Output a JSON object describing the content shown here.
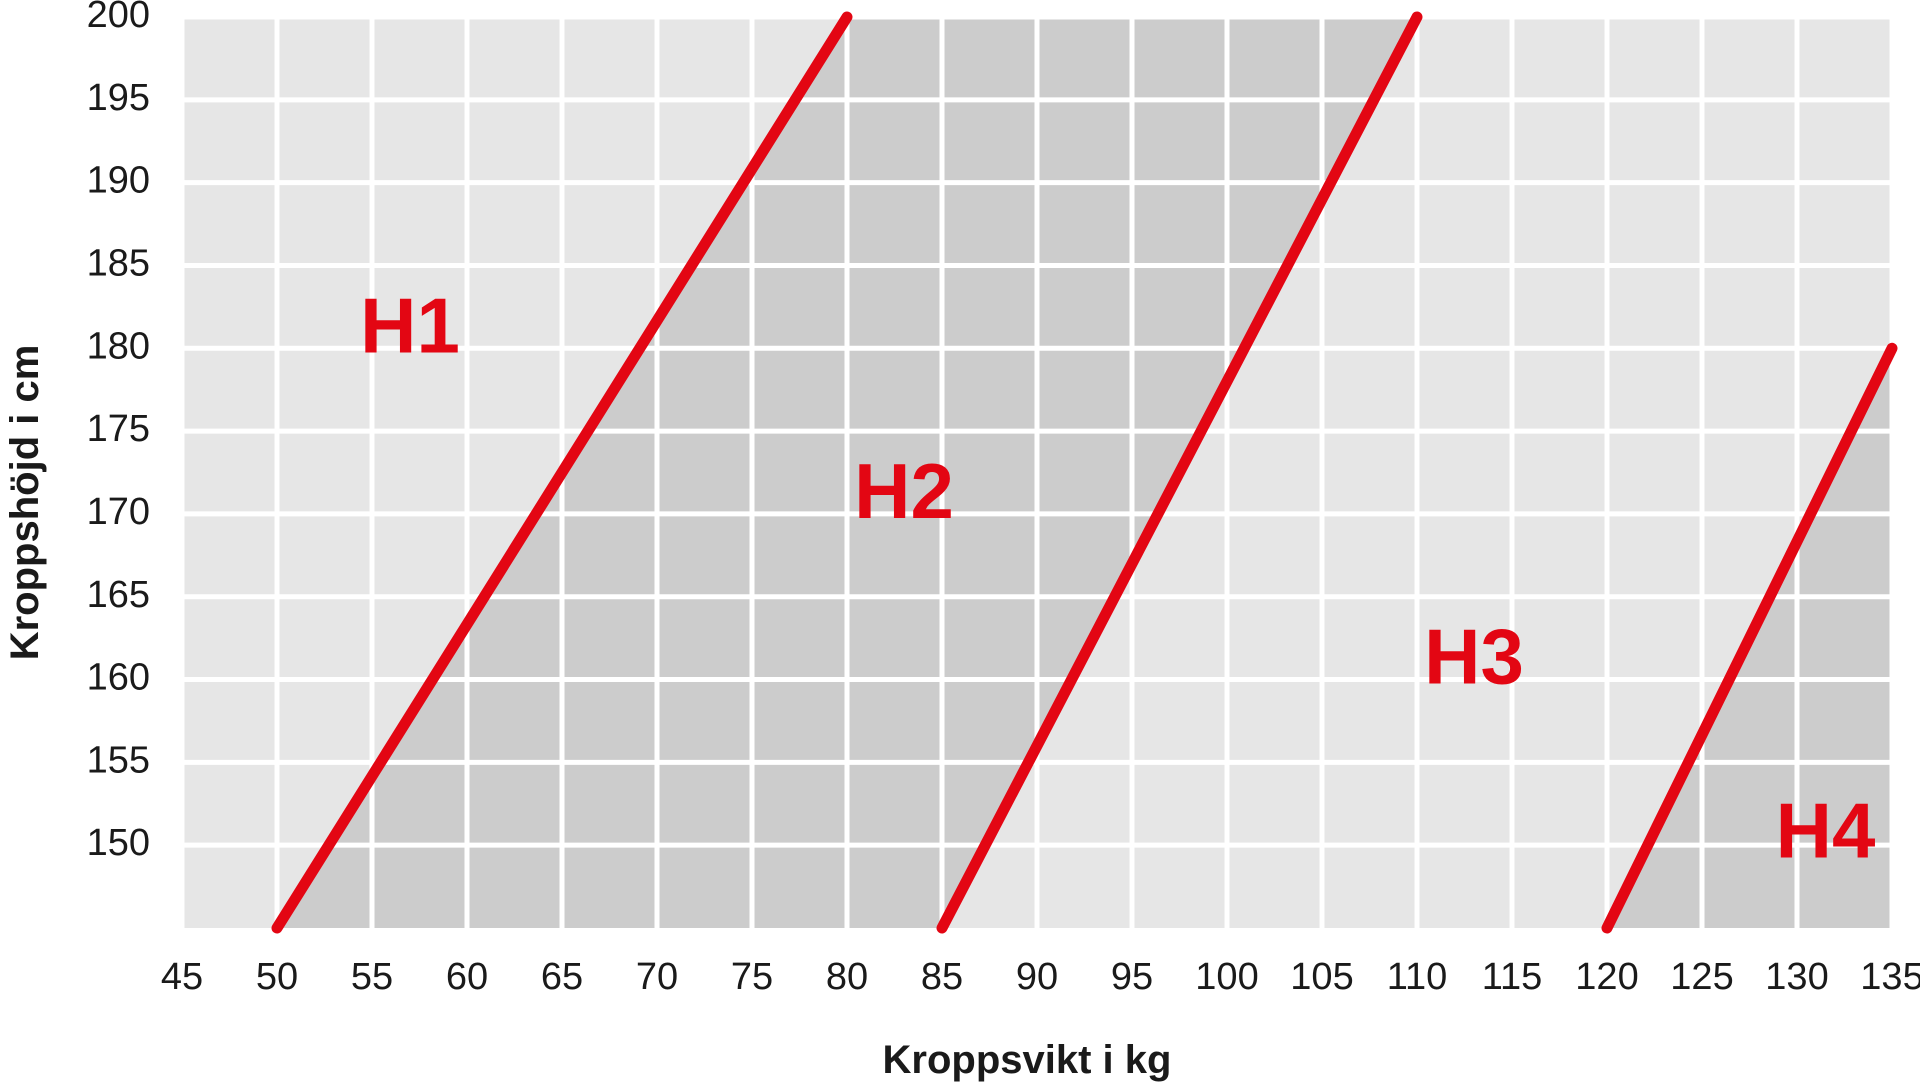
{
  "chart_data": {
    "type": "line",
    "title": "",
    "xlabel": "Kroppsvikt i kg",
    "ylabel": "Kroppshöjd i cm",
    "xlim": [
      45,
      135
    ],
    "ylim": [
      145,
      200
    ],
    "x_ticks": [
      45,
      50,
      55,
      60,
      65,
      70,
      75,
      80,
      85,
      90,
      95,
      100,
      105,
      110,
      115,
      120,
      125,
      130,
      135
    ],
    "y_ticks": [
      150,
      155,
      160,
      165,
      170,
      175,
      180,
      185,
      190,
      195,
      200
    ],
    "x_tick_labels": [
      "45",
      "50",
      "55",
      "60",
      "65",
      "70",
      "75",
      "80",
      "85",
      "90",
      "95",
      "100",
      "105",
      "110",
      "115",
      "120",
      "125",
      "130",
      "135"
    ],
    "y_tick_labels": [
      "150",
      "155",
      "160",
      "165",
      "170",
      "175",
      "180",
      "185",
      "190",
      "195",
      "200"
    ],
    "grid": true,
    "series": [
      {
        "points": [
          [
            50,
            145
          ],
          [
            80,
            200
          ]
        ]
      },
      {
        "points": [
          [
            85,
            145
          ],
          [
            110,
            200
          ]
        ]
      },
      {
        "points": [
          [
            120,
            145
          ],
          [
            135,
            180
          ]
        ]
      }
    ],
    "regions": [
      {
        "label": "H1",
        "x": 57,
        "y": 181
      },
      {
        "label": "H2",
        "x": 83,
        "y": 171
      },
      {
        "label": "H3",
        "x": 113,
        "y": 161
      },
      {
        "label": "H4",
        "x": 131.5,
        "y": 150.5
      }
    ],
    "colors": {
      "line": "#e30613",
      "region_light": "#e6e6e6",
      "region_dark": "#cccccc",
      "grid": "#ffffff",
      "label": "#e30613"
    }
  }
}
